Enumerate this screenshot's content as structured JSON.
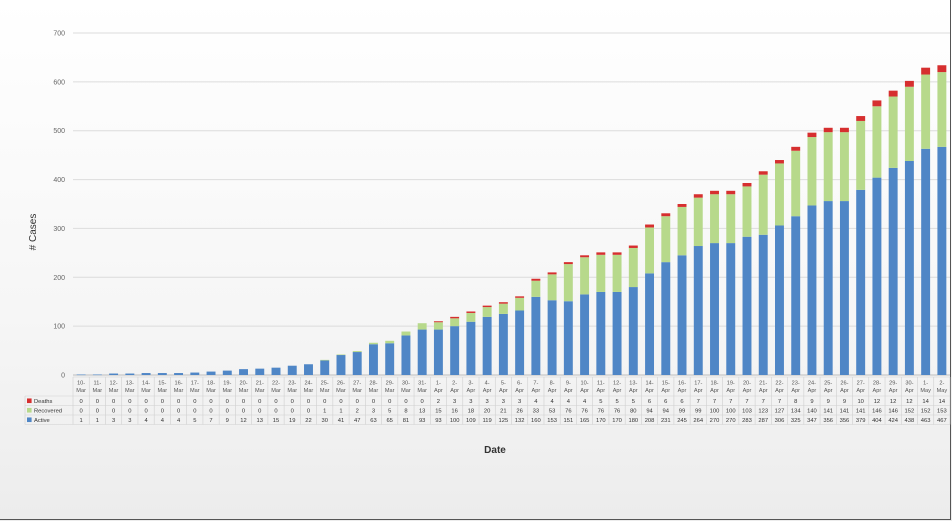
{
  "chart_data": {
    "type": "bar",
    "stacked": true,
    "xlabel": "Date",
    "ylabel": "# Cases",
    "ylim": [
      0,
      700
    ],
    "yticks": [
      0,
      100,
      200,
      300,
      400,
      500,
      600,
      700
    ],
    "grid": true,
    "legend_placement": "data-table-left",
    "categories": [
      [
        "10-",
        "Mar"
      ],
      [
        "11-",
        "Mar"
      ],
      [
        "12-",
        "Mar"
      ],
      [
        "13-",
        "Mar"
      ],
      [
        "14-",
        "Mar"
      ],
      [
        "15-",
        "Mar"
      ],
      [
        "16-",
        "Mar"
      ],
      [
        "17-",
        "Mar"
      ],
      [
        "18-",
        "Mar"
      ],
      [
        "19-",
        "Mar"
      ],
      [
        "20-",
        "Mar"
      ],
      [
        "21-",
        "Mar"
      ],
      [
        "22-",
        "Mar"
      ],
      [
        "23-",
        "Mar"
      ],
      [
        "24-",
        "Mar"
      ],
      [
        "25-",
        "Mar"
      ],
      [
        "26-",
        "Mar"
      ],
      [
        "27-",
        "Mar"
      ],
      [
        "28-",
        "Mar"
      ],
      [
        "29-",
        "Mar"
      ],
      [
        "30-",
        "Mar"
      ],
      [
        "31-",
        "Mar"
      ],
      [
        "1-",
        "Apr"
      ],
      [
        "2-",
        "Apr"
      ],
      [
        "3-",
        "Apr"
      ],
      [
        "4-",
        "Apr"
      ],
      [
        "5-",
        "Apr"
      ],
      [
        "6-",
        "Apr"
      ],
      [
        "7-",
        "Apr"
      ],
      [
        "8-",
        "Apr"
      ],
      [
        "9-",
        "Apr"
      ],
      [
        "10-",
        "Apr"
      ],
      [
        "11-",
        "Apr"
      ],
      [
        "12-",
        "Apr"
      ],
      [
        "13-",
        "Apr"
      ],
      [
        "14-",
        "Apr"
      ],
      [
        "15-",
        "Apr"
      ],
      [
        "16-",
        "Apr"
      ],
      [
        "17-",
        "Apr"
      ],
      [
        "18-",
        "Apr"
      ],
      [
        "19-",
        "Apr"
      ],
      [
        "20-",
        "Apr"
      ],
      [
        "21-",
        "Apr"
      ],
      [
        "22-",
        "Apr"
      ],
      [
        "23-",
        "Apr"
      ],
      [
        "24-",
        "Apr"
      ],
      [
        "25-",
        "Apr"
      ],
      [
        "26-",
        "Apr"
      ],
      [
        "27-",
        "Apr"
      ],
      [
        "28-",
        "Apr"
      ],
      [
        "29-",
        "Apr"
      ],
      [
        "30-",
        "Apr"
      ],
      [
        "1-",
        "May"
      ],
      [
        "2-",
        "May"
      ]
    ],
    "series": [
      {
        "name": "Active",
        "color": "#4f86c6",
        "values": [
          1,
          1,
          3,
          3,
          4,
          4,
          4,
          5,
          7,
          9,
          12,
          13,
          15,
          19,
          22,
          30,
          41,
          47,
          63,
          65,
          81,
          93,
          93,
          100,
          109,
          119,
          125,
          132,
          160,
          153,
          151,
          165,
          170,
          170,
          180,
          208,
          231,
          245,
          264,
          270,
          270,
          283,
          287,
          306,
          325,
          347,
          356,
          356,
          379,
          404,
          424,
          438,
          463,
          467
        ]
      },
      {
        "name": "Recovered",
        "color": "#b7d98b",
        "values": [
          0,
          0,
          0,
          0,
          0,
          0,
          0,
          0,
          0,
          0,
          0,
          0,
          0,
          0,
          0,
          1,
          1,
          2,
          3,
          5,
          8,
          13,
          15,
          16,
          18,
          20,
          21,
          26,
          33,
          53,
          76,
          76,
          76,
          76,
          80,
          94,
          94,
          99,
          99,
          100,
          100,
          103,
          123,
          127,
          134,
          140,
          141,
          141,
          141,
          146,
          146,
          152,
          152,
          153
        ]
      },
      {
        "name": "Deaths",
        "color": "#d62f2f",
        "values": [
          0,
          0,
          0,
          0,
          0,
          0,
          0,
          0,
          0,
          0,
          0,
          0,
          0,
          0,
          0,
          0,
          0,
          0,
          0,
          0,
          0,
          0,
          2,
          3,
          3,
          3,
          3,
          3,
          4,
          4,
          4,
          4,
          5,
          5,
          5,
          6,
          6,
          6,
          7,
          7,
          7,
          7,
          7,
          7,
          8,
          9,
          9,
          9,
          10,
          12,
          12,
          12,
          14,
          14
        ]
      }
    ]
  }
}
